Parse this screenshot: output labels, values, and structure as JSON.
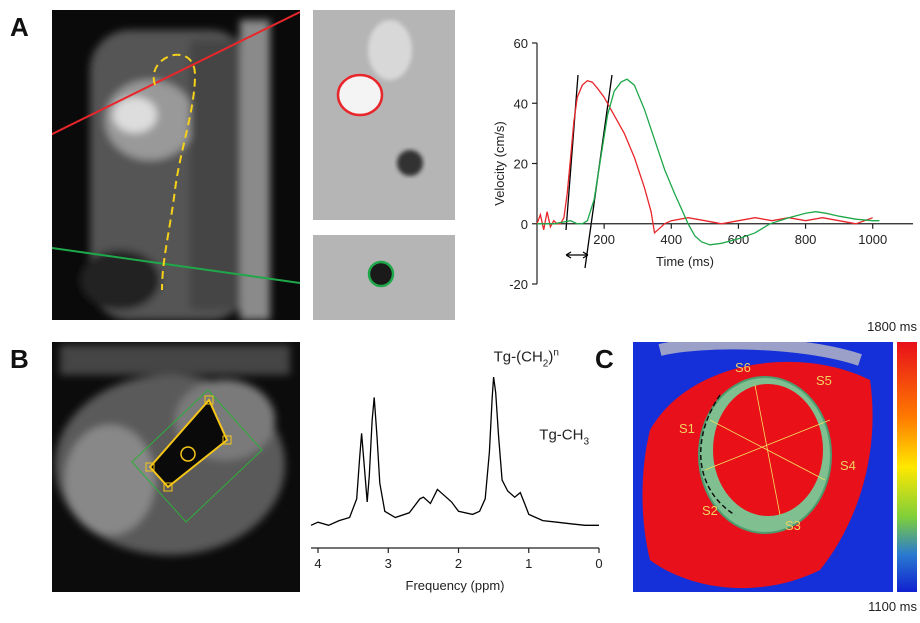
{
  "panel_labels": [
    "A",
    "B",
    "C"
  ],
  "panel_c": {
    "segments": [
      "S1",
      "S2",
      "S3",
      "S4",
      "S5",
      "S6"
    ],
    "colorbar_max": "1800 ms",
    "colorbar_min": "1100 ms"
  },
  "chart_data": [
    {
      "type": "line",
      "xlabel": "Time (ms)",
      "ylabel": "Velocity (cm/s)",
      "xlim": [
        0,
        1120
      ],
      "ylim": [
        -20,
        60
      ],
      "xticks": [
        200,
        400,
        600,
        800,
        1000
      ],
      "yticks": [
        -20,
        0,
        20,
        40,
        60
      ],
      "series": [
        {
          "color": "#e8262b",
          "x": [
            0,
            10,
            20,
            30,
            40,
            50,
            60,
            70,
            80,
            90,
            100,
            110,
            120,
            135,
            150,
            165,
            180,
            200,
            230,
            260,
            290,
            320,
            340,
            350,
            360,
            380,
            400,
            450,
            500,
            550,
            600,
            650,
            700,
            750,
            800,
            850,
            900,
            950,
            1000
          ],
          "values": [
            0,
            3,
            -2,
            4,
            -1,
            1,
            0,
            0,
            2,
            10,
            22,
            34,
            42,
            46,
            47.5,
            47,
            45,
            42,
            36,
            30,
            22,
            12,
            4,
            -3,
            -2,
            0,
            1,
            2,
            1,
            0,
            1,
            2,
            1,
            2,
            1,
            2,
            1,
            0,
            2
          ]
        },
        {
          "color": "#1fa84a",
          "x": [
            0,
            50,
            100,
            120,
            135,
            150,
            170,
            190,
            210,
            230,
            250,
            268,
            290,
            320,
            350,
            380,
            410,
            430,
            450,
            470,
            490,
            515,
            550,
            600,
            650,
            694,
            750,
            800,
            830,
            860,
            900,
            950,
            1000,
            1020
          ],
          "values": [
            0,
            0,
            1,
            0,
            0,
            1,
            8,
            22,
            36,
            44,
            47,
            48,
            46,
            38,
            28,
            18,
            10,
            5,
            0,
            -4,
            -6,
            -7,
            -6.5,
            -5,
            -3,
            0,
            2,
            3.5,
            4,
            3.5,
            2.5,
            1.5,
            1,
            1
          ]
        }
      ]
    },
    {
      "type": "line",
      "xlabel": "Frequency  (ppm)",
      "xlim": [
        4.1,
        0
      ],
      "ylim": [
        0,
        100
      ],
      "xticks": [
        4,
        3,
        2,
        1,
        0
      ],
      "annotations": [
        {
          "prefix": "Tg-(CH",
          "sub": "2",
          "mid": ")",
          "sup": "n",
          "x": 1.5,
          "y": 108
        },
        {
          "prefix": "Tg-CH",
          "sub": "3",
          "x": 0.85,
          "y": 58
        }
      ],
      "series": [
        {
          "color": "#000000",
          "x": [
            4.1,
            4.0,
            3.85,
            3.7,
            3.55,
            3.45,
            3.41,
            3.38,
            3.34,
            3.3,
            3.27,
            3.23,
            3.2,
            3.16,
            3.12,
            3.05,
            2.9,
            2.7,
            2.55,
            2.5,
            2.4,
            2.3,
            2.2,
            2.1,
            2.0,
            1.8,
            1.7,
            1.62,
            1.56,
            1.52,
            1.5,
            1.47,
            1.43,
            1.38,
            1.3,
            1.2,
            1.12,
            1.05,
            1.0,
            0.8,
            0.6,
            0.4,
            0.2,
            0
          ],
          "values": [
            3,
            5,
            3,
            6,
            8,
            20,
            45,
            62,
            40,
            18,
            35,
            70,
            85,
            60,
            30,
            12,
            8,
            11,
            20,
            21,
            17,
            26,
            22,
            18,
            12,
            10,
            12,
            20,
            50,
            85,
            98,
            88,
            60,
            32,
            25,
            21,
            24,
            16,
            10,
            6,
            5,
            4,
            3,
            3
          ]
        }
      ]
    }
  ]
}
